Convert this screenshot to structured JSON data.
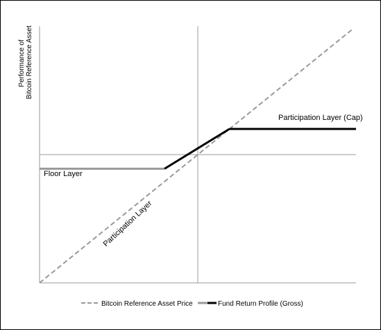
{
  "chart_data": {
    "type": "line",
    "title": "",
    "xlabel": "",
    "ylabel_lines": [
      "Performance of",
      "Bitcoin Reference Asset"
    ],
    "xlim": [
      -1,
      1
    ],
    "ylim": [
      -1,
      1
    ],
    "grid": false,
    "legend_position": "bottom",
    "series": [
      {
        "name": "Bitcoin Reference Asset Price",
        "style": "dashed",
        "color": "#999999",
        "x": [
          -1,
          0.98
        ],
        "y": [
          -1,
          0.98
        ]
      },
      {
        "name": "Fund Return Profile (Gross)",
        "style": "solid",
        "segments": [
          {
            "color": "#999999",
            "x": [
              -1,
              -0.21
            ],
            "y": [
              -0.11,
              -0.11
            ]
          },
          {
            "color": "#000000",
            "x": [
              -0.21,
              0.2
            ],
            "y": [
              -0.11,
              0.2
            ]
          },
          {
            "color": "#000000",
            "x": [
              0.2,
              1
            ],
            "y": [
              0.2,
              0.2
            ]
          }
        ]
      }
    ],
    "annotations": [
      {
        "id": "cap",
        "text": "Participation Layer (Cap)"
      },
      {
        "id": "floor",
        "text": "Floor Layer"
      },
      {
        "id": "participation",
        "text": "Participation Layer"
      }
    ]
  }
}
